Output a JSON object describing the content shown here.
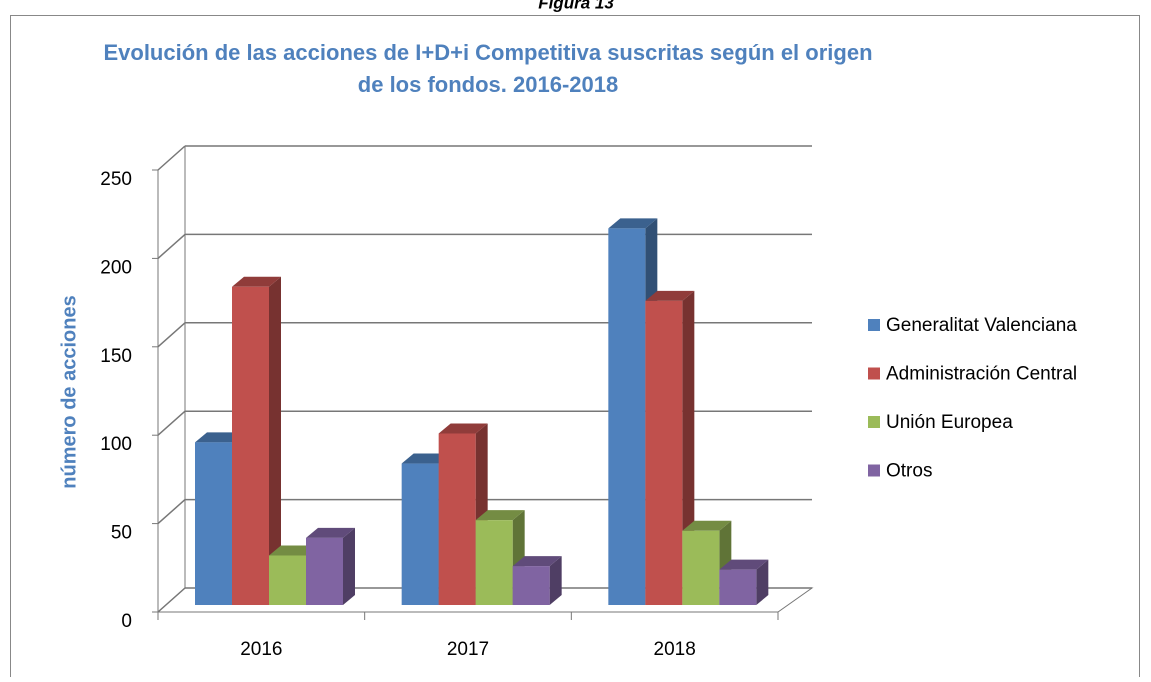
{
  "caption": "Figura 13",
  "chart_data": {
    "type": "bar3d",
    "title": "Evolución de las acciones de I+D+i Competitiva suscritas según el origen de los fondos. 2016-2018",
    "ylabel": "número de acciones",
    "categories": [
      "2016",
      "2017",
      "2018"
    ],
    "series": [
      {
        "name": "Generalitat Valenciana",
        "color": "#4f81bd",
        "values": [
          92,
          80,
          213
        ]
      },
      {
        "name": "Administración Central",
        "color": "#c0504d",
        "values": [
          180,
          97,
          172
        ]
      },
      {
        "name": "Unión Europea",
        "color": "#9bbb59",
        "values": [
          28,
          48,
          42
        ]
      },
      {
        "name": "Otros",
        "color": "#8064a2",
        "values": [
          38,
          22,
          20
        ]
      }
    ],
    "ylim": [
      0,
      250
    ],
    "yticks": [
      0,
      50,
      100,
      150,
      200,
      250
    ],
    "grid": true,
    "legend": "right"
  }
}
